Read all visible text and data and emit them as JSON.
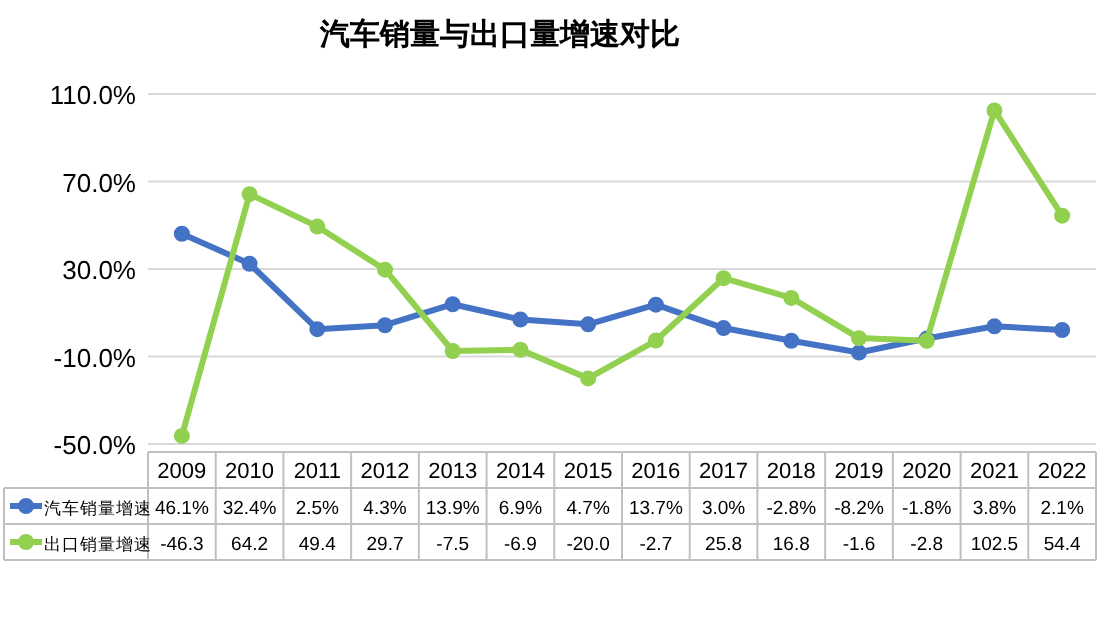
{
  "chart_data": {
    "type": "line",
    "title": "汽车销量与出口量增速对比",
    "categories": [
      "2009",
      "2010",
      "2011",
      "2012",
      "2013",
      "2014",
      "2015",
      "2016",
      "2017",
      "2018",
      "2019",
      "2020",
      "2021",
      "2022"
    ],
    "series": [
      {
        "name": "汽车销量增速",
        "color": "#4472c4",
        "values": [
          46.1,
          32.4,
          2.5,
          4.3,
          13.9,
          6.9,
          4.7,
          13.7,
          3.0,
          -2.8,
          -8.2,
          -1.8,
          3.8,
          2.1
        ],
        "value_labels": [
          "46.1%",
          "32.4%",
          "2.5%",
          "4.3%",
          "13.9%",
          "6.9%",
          "4.7%",
          "13.7%",
          "3.0%",
          "-2.8%",
          "-8.2%",
          "-1.8%",
          "3.8%",
          "2.1%"
        ]
      },
      {
        "name": "出口销量增速",
        "color": "#92d050",
        "values": [
          -46.3,
          64.2,
          49.4,
          29.7,
          -7.5,
          -6.9,
          -20.0,
          -2.7,
          25.8,
          16.8,
          -1.6,
          -2.8,
          102.5,
          54.4
        ],
        "value_labels": [
          "-46.3",
          "64.2",
          "49.4",
          "29.7",
          "-7.5",
          "-6.9",
          "-20.0",
          "-2.7",
          "25.8",
          "16.8",
          "-1.6",
          "-2.8",
          "102.5",
          "54.4"
        ]
      }
    ],
    "ylim": [
      -50,
      110
    ],
    "yticks": [
      {
        "value": -50,
        "label": "-50.0%"
      },
      {
        "value": -10,
        "label": "-10.0%"
      },
      {
        "value": 30,
        "label": "30.0%"
      },
      {
        "value": 70,
        "label": "70.0%"
      },
      {
        "value": 110,
        "label": "110.0%"
      }
    ],
    "grid": "y",
    "legend": "bottom",
    "marker": "circle"
  }
}
